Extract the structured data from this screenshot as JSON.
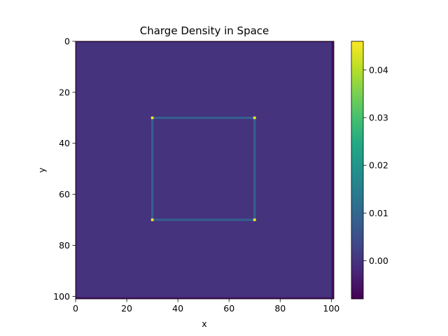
{
  "chart_data": {
    "type": "heatmap",
    "title": "Charge Density in Space",
    "xlabel": "x",
    "ylabel": "y",
    "xlim": [
      0,
      101
    ],
    "ylim": [
      101,
      0
    ],
    "x_ticks": [
      0,
      20,
      40,
      60,
      80,
      100
    ],
    "y_ticks": [
      0,
      20,
      40,
      60,
      80,
      100
    ],
    "x_tick_labels": [
      "0",
      "20",
      "40",
      "60",
      "80",
      "100"
    ],
    "y_tick_labels": [
      "0",
      "20",
      "40",
      "60",
      "80",
      "100"
    ],
    "colormap": "viridis",
    "grid": false,
    "background_value": 0.0,
    "edge_value": -0.007,
    "square": {
      "x0": 30,
      "x1": 70,
      "y0": 30,
      "y1": 70
    },
    "square_edge_value": 0.008,
    "corner_value": 0.046,
    "corners": [
      {
        "x": 30,
        "y": 30
      },
      {
        "x": 70,
        "y": 30
      },
      {
        "x": 30,
        "y": 70
      },
      {
        "x": 70,
        "y": 70
      }
    ],
    "colorbar": {
      "range": [
        -0.008,
        0.046
      ],
      "ticks": [
        0.0,
        0.01,
        0.02,
        0.03,
        0.04
      ],
      "tick_labels": [
        "0.00",
        "0.01",
        "0.02",
        "0.03",
        "0.04"
      ]
    }
  }
}
